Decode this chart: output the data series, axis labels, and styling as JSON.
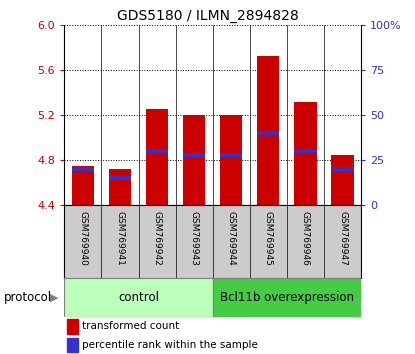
{
  "title": "GDS5180 / ILMN_2894828",
  "samples": [
    "GSM769940",
    "GSM769941",
    "GSM769942",
    "GSM769943",
    "GSM769944",
    "GSM769945",
    "GSM769946",
    "GSM769947"
  ],
  "transformed_counts": [
    4.75,
    4.72,
    5.25,
    5.2,
    5.2,
    5.72,
    5.32,
    4.85
  ],
  "percentile_ranks": [
    20,
    15,
    30,
    28,
    28,
    40,
    30,
    20
  ],
  "y_min": 4.4,
  "y_max": 6.0,
  "y_ticks": [
    4.4,
    4.8,
    5.2,
    5.6,
    6.0
  ],
  "y2_ticks": [
    0,
    25,
    50,
    75,
    100
  ],
  "bar_color": "#cc0000",
  "blue_color": "#3333cc",
  "control_label": "control",
  "overexpression_label": "Bcl11b overexpression",
  "control_color": "#bbffbb",
  "overexpression_color": "#44cc44",
  "protocol_label": "protocol",
  "legend1": "transformed count",
  "legend2": "percentile rank within the sample",
  "bar_width": 0.6,
  "sample_bg_color": "#cccccc"
}
